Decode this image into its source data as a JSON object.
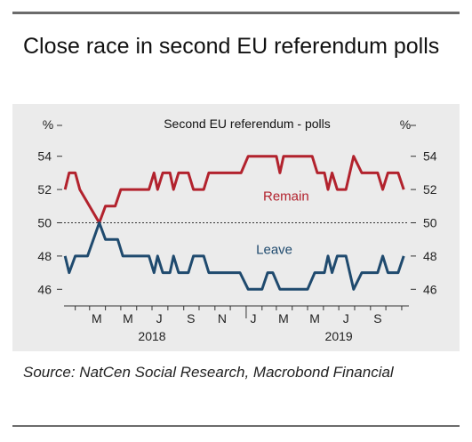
{
  "title": "Close race in second EU referendum polls",
  "source": "Source: NatCen Social Research, Macrobond Financial",
  "colors": {
    "remain": "#b2222d",
    "leave": "#1f4a6e",
    "panel": "#ebebeb",
    "axis": "#333333"
  },
  "chart_data": {
    "type": "line",
    "title": "Second EU referendum - polls",
    "y_unit_left": "%",
    "y_unit_right": "%",
    "ylim": [
      45,
      55
    ],
    "yticks": [
      46,
      48,
      50,
      52,
      54
    ],
    "reference_line": 50,
    "x_month_labels": [
      {
        "label": "M",
        "date": "2018-03"
      },
      {
        "label": "M",
        "date": "2018-05"
      },
      {
        "label": "J",
        "date": "2018-07"
      },
      {
        "label": "S",
        "date": "2018-09"
      },
      {
        "label": "N",
        "date": "2018-11"
      },
      {
        "label": "J",
        "date": "2019-01"
      },
      {
        "label": "M",
        "date": "2019-03"
      },
      {
        "label": "M",
        "date": "2019-05"
      },
      {
        "label": "J",
        "date": "2019-07"
      },
      {
        "label": "S",
        "date": "2019-09"
      }
    ],
    "x_year_labels": [
      {
        "label": "2018",
        "date": "2018-07"
      },
      {
        "label": "2019",
        "date": "2019-07"
      }
    ],
    "xlim": [
      "2018-01-10",
      "2019-11-15"
    ],
    "series": [
      {
        "name": "Remain",
        "color": "#b2222d",
        "points": [
          [
            "2018-01-12",
            52
          ],
          [
            "2018-01-20",
            53
          ],
          [
            "2018-02-01",
            53
          ],
          [
            "2018-02-10",
            52
          ],
          [
            "2018-03-20",
            50
          ],
          [
            "2018-04-01",
            51
          ],
          [
            "2018-04-20",
            51
          ],
          [
            "2018-05-01",
            52
          ],
          [
            "2018-06-25",
            52
          ],
          [
            "2018-07-05",
            53
          ],
          [
            "2018-07-12",
            52
          ],
          [
            "2018-07-22",
            53
          ],
          [
            "2018-08-05",
            53
          ],
          [
            "2018-08-12",
            52
          ],
          [
            "2018-08-22",
            53
          ],
          [
            "2018-09-10",
            53
          ],
          [
            "2018-09-20",
            52
          ],
          [
            "2018-10-10",
            52
          ],
          [
            "2018-10-20",
            53
          ],
          [
            "2018-12-22",
            53
          ],
          [
            "2019-01-05",
            54
          ],
          [
            "2019-03-01",
            54
          ],
          [
            "2019-03-08",
            53
          ],
          [
            "2019-03-15",
            54
          ],
          [
            "2019-05-10",
            54
          ],
          [
            "2019-05-20",
            53
          ],
          [
            "2019-06-03",
            53
          ],
          [
            "2019-06-10",
            52
          ],
          [
            "2019-06-18",
            53
          ],
          [
            "2019-06-28",
            52
          ],
          [
            "2019-07-15",
            52
          ],
          [
            "2019-07-30",
            54
          ],
          [
            "2019-08-15",
            53
          ],
          [
            "2019-09-15",
            53
          ],
          [
            "2019-09-25",
            52
          ],
          [
            "2019-10-05",
            53
          ],
          [
            "2019-10-25",
            53
          ],
          [
            "2019-11-05",
            52
          ]
        ]
      },
      {
        "name": "Leave",
        "color": "#1f4a6e",
        "points": [
          [
            "2018-01-12",
            48
          ],
          [
            "2018-01-20",
            47
          ],
          [
            "2018-02-01",
            48
          ],
          [
            "2018-02-25",
            48
          ],
          [
            "2018-03-20",
            50
          ],
          [
            "2018-04-01",
            49
          ],
          [
            "2018-04-25",
            49
          ],
          [
            "2018-05-05",
            48
          ],
          [
            "2018-06-25",
            48
          ],
          [
            "2018-07-05",
            47
          ],
          [
            "2018-07-12",
            48
          ],
          [
            "2018-07-22",
            47
          ],
          [
            "2018-08-05",
            47
          ],
          [
            "2018-08-12",
            48
          ],
          [
            "2018-08-22",
            47
          ],
          [
            "2018-09-10",
            47
          ],
          [
            "2018-09-20",
            48
          ],
          [
            "2018-10-10",
            48
          ],
          [
            "2018-10-20",
            47
          ],
          [
            "2018-12-20",
            47
          ],
          [
            "2019-01-05",
            46
          ],
          [
            "2019-02-01",
            46
          ],
          [
            "2019-02-12",
            47
          ],
          [
            "2019-02-22",
            47
          ],
          [
            "2019-03-08",
            46
          ],
          [
            "2019-05-01",
            46
          ],
          [
            "2019-05-15",
            47
          ],
          [
            "2019-06-03",
            47
          ],
          [
            "2019-06-10",
            48
          ],
          [
            "2019-06-18",
            47
          ],
          [
            "2019-06-28",
            48
          ],
          [
            "2019-07-15",
            48
          ],
          [
            "2019-07-30",
            46
          ],
          [
            "2019-08-15",
            47
          ],
          [
            "2019-09-15",
            47
          ],
          [
            "2019-09-25",
            48
          ],
          [
            "2019-10-05",
            47
          ],
          [
            "2019-10-25",
            47
          ],
          [
            "2019-11-05",
            48
          ]
        ]
      }
    ],
    "series_labels": [
      {
        "text": "Remain",
        "series": "Remain",
        "x": "2019-03-20",
        "y": 51.6
      },
      {
        "text": "Leave",
        "series": "Leave",
        "x": "2019-02-25",
        "y": 48.4
      }
    ]
  }
}
